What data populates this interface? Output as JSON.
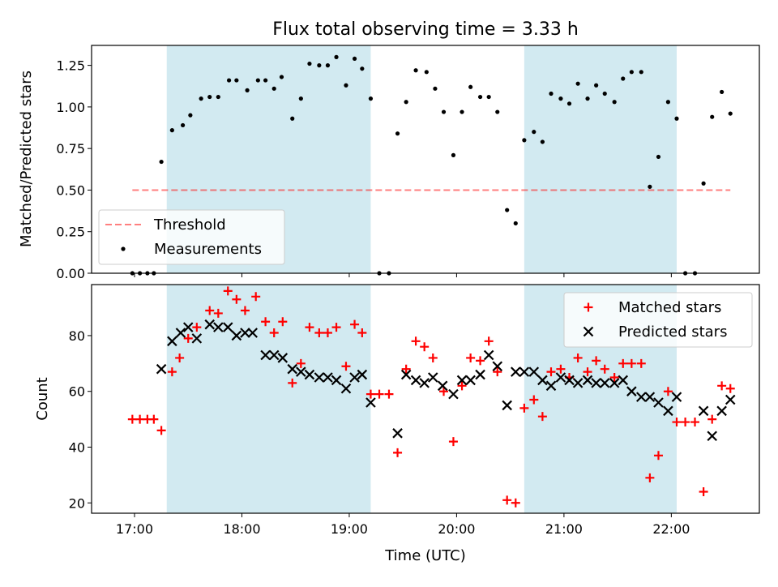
{
  "title": "Flux total observing time = 3.33 h",
  "colors": {
    "shade": "#add8e6",
    "threshold": "#ff0000",
    "measurement": "#000000",
    "matched": "#ff0000",
    "predicted": "#000000"
  },
  "chart_data": [
    {
      "type": "scatter",
      "panel": "top",
      "ylabel": "Matched/Predicted stars",
      "xlim": [
        16.6,
        22.82
      ],
      "ylim": [
        0.0,
        1.37
      ],
      "yticks": [
        0.0,
        0.25,
        0.5,
        0.75,
        1.0,
        1.25
      ],
      "ytick_labels": [
        "0.00",
        "0.25",
        "0.50",
        "0.75",
        "1.00",
        "1.25"
      ],
      "shaded_intervals": [
        [
          17.3,
          19.2
        ],
        [
          20.63,
          22.05
        ]
      ],
      "legend": {
        "position": "lower-left",
        "entries": [
          "Threshold",
          "Measurements"
        ]
      },
      "threshold": {
        "name": "Threshold",
        "y": 0.5,
        "x": [
          16.98,
          22.55
        ]
      },
      "series": [
        {
          "name": "Measurements",
          "x": [
            16.98,
            17.05,
            17.12,
            17.18,
            17.25,
            17.35,
            17.45,
            17.52,
            17.62,
            17.7,
            17.78,
            17.88,
            17.95,
            18.05,
            18.15,
            18.22,
            18.3,
            18.37,
            18.47,
            18.55,
            18.63,
            18.72,
            18.8,
            18.88,
            18.97,
            19.05,
            19.12,
            19.2,
            19.28,
            19.37,
            19.45,
            19.53,
            19.62,
            19.72,
            19.8,
            19.88,
            19.97,
            20.05,
            20.13,
            20.22,
            20.3,
            20.38,
            20.47,
            20.55,
            20.63,
            20.72,
            20.8,
            20.88,
            20.97,
            21.05,
            21.13,
            21.22,
            21.3,
            21.38,
            21.47,
            21.55,
            21.63,
            21.72,
            21.8,
            21.88,
            21.97,
            22.05,
            22.13,
            22.22,
            22.3,
            22.38,
            22.47,
            22.55
          ],
          "y": [
            0.0,
            0.0,
            0.0,
            0.0,
            0.67,
            0.86,
            0.89,
            0.95,
            1.05,
            1.06,
            1.06,
            1.16,
            1.16,
            1.1,
            1.16,
            1.16,
            1.11,
            1.18,
            0.93,
            1.05,
            1.26,
            1.25,
            1.25,
            1.3,
            1.13,
            1.29,
            1.23,
            1.05,
            0.0,
            0.0,
            0.84,
            1.03,
            1.22,
            1.21,
            1.11,
            0.97,
            0.71,
            0.97,
            1.12,
            1.06,
            1.06,
            0.97,
            0.38,
            0.3,
            0.8,
            0.85,
            0.79,
            1.08,
            1.05,
            1.02,
            1.14,
            1.05,
            1.13,
            1.08,
            1.03,
            1.17,
            1.21,
            1.21,
            0.52,
            0.7,
            1.03,
            0.93,
            0.0,
            0.0,
            0.54,
            0.94,
            1.09,
            0.96
          ]
        }
      ]
    },
    {
      "type": "scatter",
      "panel": "bottom",
      "xlabel": "Time (UTC)",
      "ylabel": "Count",
      "xlim": [
        16.6,
        22.82
      ],
      "ylim": [
        16.3,
        98.3
      ],
      "xticks": [
        17,
        18,
        19,
        20,
        21,
        22
      ],
      "xtick_labels": [
        "17:00",
        "18:00",
        "19:00",
        "20:00",
        "21:00",
        "22:00"
      ],
      "yticks": [
        20,
        40,
        60,
        80
      ],
      "ytick_labels": [
        "20",
        "40",
        "60",
        "80"
      ],
      "shaded_intervals": [
        [
          17.3,
          19.2
        ],
        [
          20.63,
          22.05
        ]
      ],
      "legend": {
        "position": "upper-right",
        "entries": [
          "Matched stars",
          "Predicted stars"
        ]
      },
      "series": [
        {
          "name": "Matched stars",
          "marker": "+",
          "x": [
            16.98,
            17.05,
            17.12,
            17.18,
            17.25,
            17.35,
            17.42,
            17.5,
            17.58,
            17.7,
            17.78,
            17.87,
            17.95,
            18.03,
            18.13,
            18.22,
            18.3,
            18.38,
            18.47,
            18.55,
            18.63,
            18.72,
            18.8,
            18.88,
            18.97,
            19.05,
            19.12,
            19.2,
            19.28,
            19.37,
            19.45,
            19.53,
            19.62,
            19.7,
            19.78,
            19.88,
            19.97,
            20.05,
            20.13,
            20.22,
            20.3,
            20.38,
            20.47,
            20.55,
            20.63,
            20.72,
            20.8,
            20.88,
            20.97,
            21.05,
            21.13,
            21.22,
            21.3,
            21.38,
            21.47,
            21.55,
            21.63,
            21.72,
            21.8,
            21.88,
            21.97,
            22.05,
            22.13,
            22.22,
            22.3,
            22.38,
            22.47,
            22.55
          ],
          "y": [
            50,
            50,
            50,
            50,
            46,
            67,
            72,
            79,
            83,
            89,
            88,
            96,
            93,
            89,
            94,
            85,
            81,
            85,
            63,
            70,
            83,
            81,
            81,
            83,
            69,
            84,
            81,
            59,
            59,
            59,
            38,
            68,
            78,
            76,
            72,
            60,
            42,
            62,
            72,
            71,
            78,
            67,
            21,
            20,
            54,
            57,
            51,
            67,
            68,
            65,
            72,
            67,
            71,
            68,
            65,
            70,
            70,
            70,
            29,
            37,
            60,
            49,
            49,
            49,
            24,
            50,
            62,
            61
          ]
        },
        {
          "name": "Predicted stars",
          "marker": "x",
          "x": [
            17.25,
            17.35,
            17.43,
            17.5,
            17.58,
            17.7,
            17.78,
            17.87,
            17.95,
            18.03,
            18.1,
            18.22,
            18.3,
            18.38,
            18.47,
            18.55,
            18.63,
            18.72,
            18.8,
            18.88,
            18.97,
            19.05,
            19.12,
            19.2,
            19.45,
            19.53,
            19.62,
            19.7,
            19.78,
            19.87,
            19.97,
            20.05,
            20.13,
            20.22,
            20.3,
            20.38,
            20.47,
            20.55,
            20.63,
            20.72,
            20.8,
            20.88,
            20.97,
            21.05,
            21.13,
            21.22,
            21.3,
            21.38,
            21.47,
            21.55,
            21.63,
            21.72,
            21.8,
            21.88,
            21.97,
            22.05,
            22.3,
            22.38,
            22.47,
            22.55
          ],
          "y": [
            68,
            78,
            81,
            83,
            79,
            84,
            83,
            83,
            80,
            81,
            81,
            73,
            73,
            72,
            68,
            67,
            66,
            65,
            65,
            64,
            61,
            65,
            66,
            56,
            45,
            66,
            64,
            63,
            65,
            62,
            59,
            64,
            64,
            66,
            73,
            69,
            55,
            67,
            67,
            67,
            64,
            62,
            65,
            64,
            63,
            64,
            63,
            63,
            63,
            64,
            60,
            58,
            58,
            56,
            53,
            58,
            53,
            44,
            53,
            57
          ]
        }
      ]
    }
  ]
}
